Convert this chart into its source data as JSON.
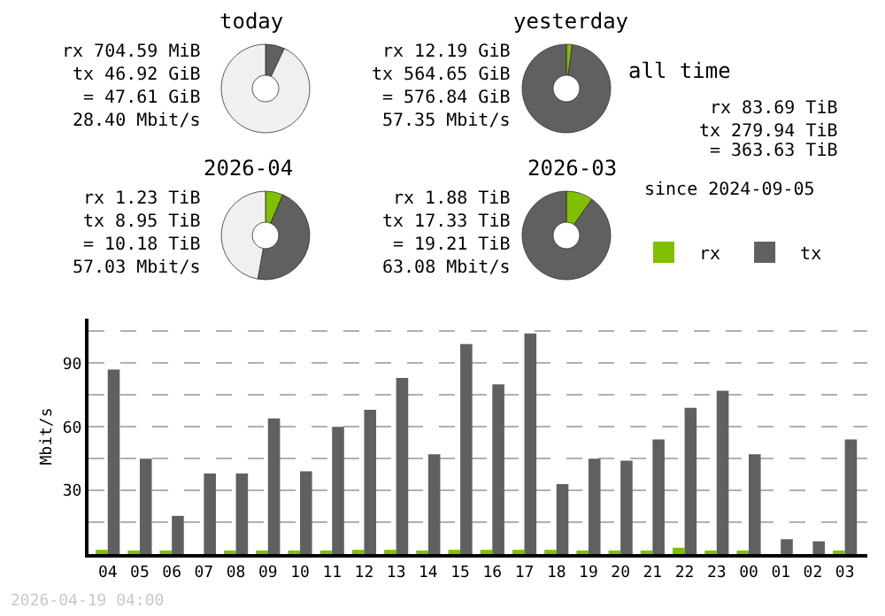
{
  "chart_data": [
    {
      "type": "donut",
      "title": "today",
      "categories": [
        null,
        null
      ],
      "values": [
        7,
        93
      ],
      "colors": [
        "#606060",
        "#f0f0f0"
      ],
      "annotations": [
        "rx 704.59 MiB",
        "tx 46.92 GiB",
        "= 47.61 GiB",
        "28.40 Mbit/s"
      ]
    },
    {
      "type": "donut",
      "title": "yesterday",
      "categories": [
        null,
        null
      ],
      "values": [
        2.1,
        97.9
      ],
      "colors": [
        "#80c000",
        "#606060"
      ],
      "annotations": [
        "rx 12.19 GiB",
        "tx 564.65 GiB",
        "= 576.84 GiB",
        "57.35 Mbit/s"
      ]
    },
    {
      "type": "donut",
      "title": "2026-04",
      "categories": [
        null,
        null,
        null
      ],
      "values": [
        6.4,
        46.4,
        47.2
      ],
      "colors": [
        "#80c000",
        "#606060",
        "#f0f0f0"
      ],
      "annotations": [
        "rx 1.23 TiB",
        "tx 8.95 TiB",
        "= 10.18 TiB",
        "57.03 Mbit/s"
      ]
    },
    {
      "type": "donut",
      "title": "2026-03",
      "categories": [
        null,
        null
      ],
      "values": [
        9.8,
        90.2
      ],
      "colors": [
        "#80c000",
        "#606060"
      ],
      "annotations": [
        "rx 1.88 TiB",
        "tx 17.33 TiB",
        "= 19.21 TiB",
        "63.08 Mbit/s"
      ]
    },
    {
      "type": "other",
      "title": "all time",
      "annotations": [
        "rx 83.69 TiB",
        "tx 279.94 TiB",
        "= 363.63 TiB",
        "since 2024-09-05"
      ]
    },
    {
      "type": "bar",
      "ylabel": "Mbit/s",
      "categories": [
        "04",
        "05",
        "06",
        "07",
        "08",
        "09",
        "10",
        "11",
        "12",
        "13",
        "14",
        "15",
        "16",
        "17",
        "18",
        "19",
        "20",
        "21",
        "22",
        "23",
        "00",
        "01",
        "02",
        "03"
      ],
      "series": [
        {
          "name": "rx",
          "color": "#80c000",
          "values": [
            2,
            1,
            1,
            0,
            1,
            1,
            1,
            1,
            2,
            2,
            1,
            2,
            2,
            2,
            2,
            1,
            1,
            1,
            3,
            1,
            1,
            0,
            0,
            1
          ]
        },
        {
          "name": "tx",
          "color": "#606060",
          "values": [
            87,
            45,
            18,
            38,
            38,
            64,
            39,
            60,
            68,
            83,
            47,
            99,
            80,
            104,
            33,
            45,
            44,
            54,
            69,
            77,
            47,
            7,
            6,
            54
          ]
        }
      ],
      "ylim": [
        0,
        111
      ],
      "yticks": [
        {
          "value": 0,
          "label": null
        },
        {
          "value": 15,
          "label": null
        },
        30,
        {
          "value": 45,
          "label": null
        },
        60,
        {
          "value": 75,
          "label": null
        },
        90,
        {
          "value": 105,
          "label": null
        }
      ],
      "grid": "y",
      "legend": "top right",
      "annotations": [
        "2026-04-19 04:00"
      ]
    }
  ]
}
